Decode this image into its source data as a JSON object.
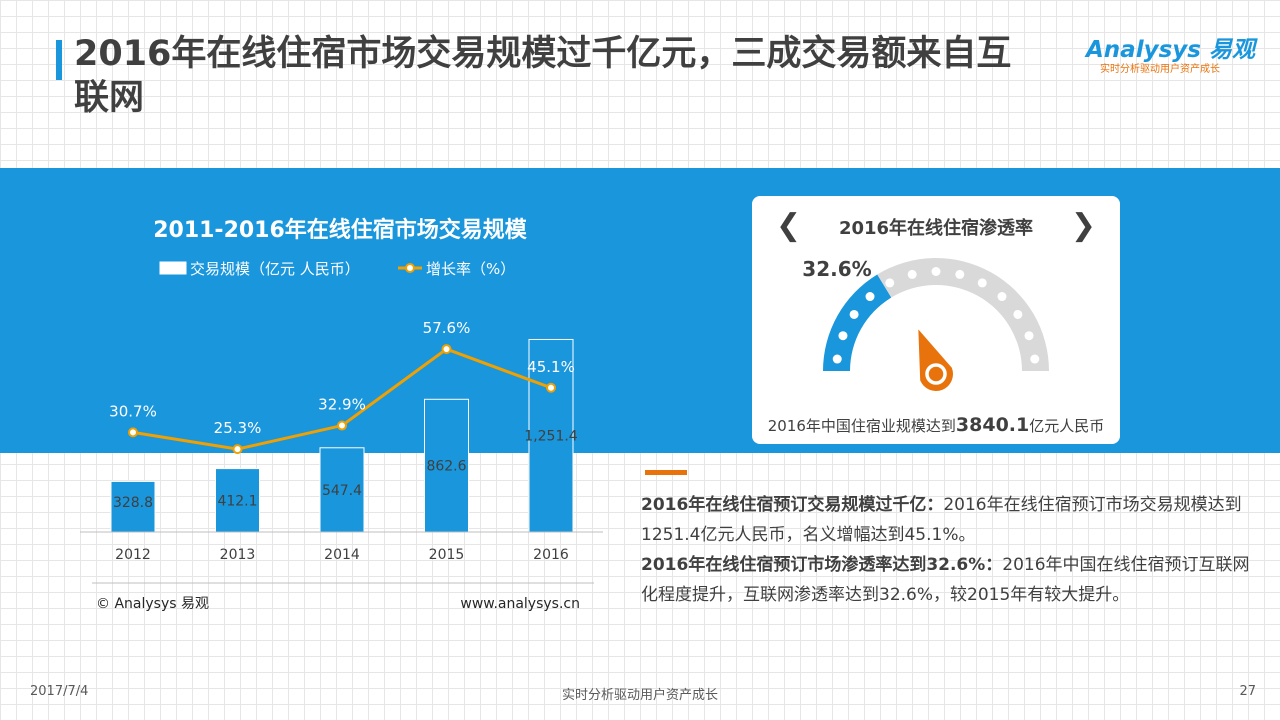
{
  "header": {
    "title": "2016年在线住宿市场交易规模过千亿元，三成交易额来自互联网",
    "logo_main": "Analysys 易观",
    "logo_sub": "实时分析驱动用户资产成长"
  },
  "chart_data": {
    "type": "bar",
    "title": "2011-2016年在线住宿市场交易规模",
    "categories": [
      "2012",
      "2013",
      "2014",
      "2015",
      "2016"
    ],
    "series": [
      {
        "name": "交易规模（亿元 人民币）",
        "type": "bar",
        "values": [
          328.8,
          412.1,
          547.4,
          862.6,
          1251.4
        ],
        "labels": [
          "328.8",
          "412.1",
          "547.4",
          "862.6",
          "1,251.4"
        ]
      },
      {
        "name": "增长率（%）",
        "type": "line",
        "values": [
          30.7,
          25.3,
          32.9,
          57.6,
          45.1
        ],
        "labels": [
          "30.7%",
          "25.3%",
          "32.9%",
          "57.6%",
          "45.1%"
        ]
      }
    ],
    "legend_position": "top",
    "source": "© Analysys 易观",
    "website": "www.analysys.cn"
  },
  "gauge": {
    "title": "2016年在线住宿渗透率",
    "value": 32.6,
    "value_label": "32.6%",
    "caption_prefix": "2016年中国住宿业规模达到",
    "caption_value": "3840.1",
    "caption_suffix": "亿元人民币",
    "colors": {
      "filled": "#1a96dc",
      "empty": "#d9d9d9",
      "needle": "#e8730c"
    }
  },
  "notes": [
    {
      "bold": "2016年在线住宿预订交易规模过千亿：",
      "text": "2016年在线住宿预订市场交易规模达到1251.4亿元人民币，名义增幅达到45.1%。"
    },
    {
      "bold": "2016年在线住宿预订市场渗透率达到32.6%：",
      "text": "2016年中国在线住宿预订互联网化程度提升，互联网渗透率达到32.6%，较2015年有较大提升。"
    }
  ],
  "footer": {
    "date": "2017/7/4",
    "center": "实时分析驱动用户资产成长",
    "page": "27"
  },
  "colors": {
    "accent": "#1a96dc",
    "orange": "#e8730c",
    "text": "#404040"
  }
}
